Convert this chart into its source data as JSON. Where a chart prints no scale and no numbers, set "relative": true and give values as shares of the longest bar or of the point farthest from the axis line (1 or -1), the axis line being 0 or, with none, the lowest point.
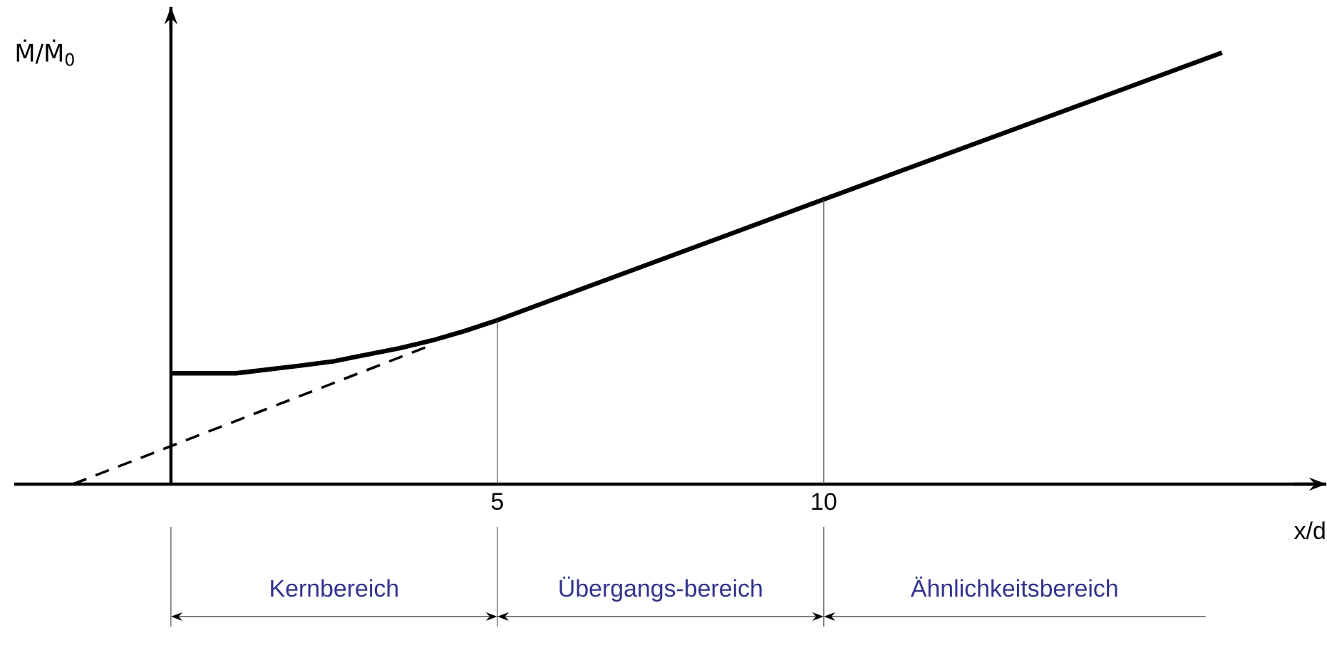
{
  "chart_data": {
    "type": "line",
    "relative": true,
    "xlabel": "x/d",
    "ylabel": "Ṁ/Ṁ$_{0}$",
    "xlim": [
      -2.4,
      17.7
    ],
    "xticks": [
      5,
      10
    ],
    "series": [
      {
        "color": "#000000",
        "line_style": "solid",
        "x": [
          0,
          1,
          2,
          2.5,
          3,
          3.5,
          4,
          4.5,
          5,
          10,
          16.1
        ],
        "values": [
          0.257,
          0.257,
          0.275,
          0.285,
          0.3,
          0.315,
          0.333,
          0.355,
          0.38,
          0.66,
          1.0
        ]
      },
      {
        "color": "#000000",
        "line_style": "dashed",
        "x": [
          -1.5,
          3.95
        ],
        "values": [
          0,
          0.32
        ]
      }
    ],
    "ref_lines": [
      {
        "axis": "x",
        "value": 0
      },
      {
        "axis": "x",
        "value": 5
      },
      {
        "axis": "x",
        "value": 10
      }
    ],
    "annotations": [
      "Kernbereich",
      "Übergangs-bereich",
      "Ähnlichkeitsbereich"
    ],
    "marker": "none"
  }
}
